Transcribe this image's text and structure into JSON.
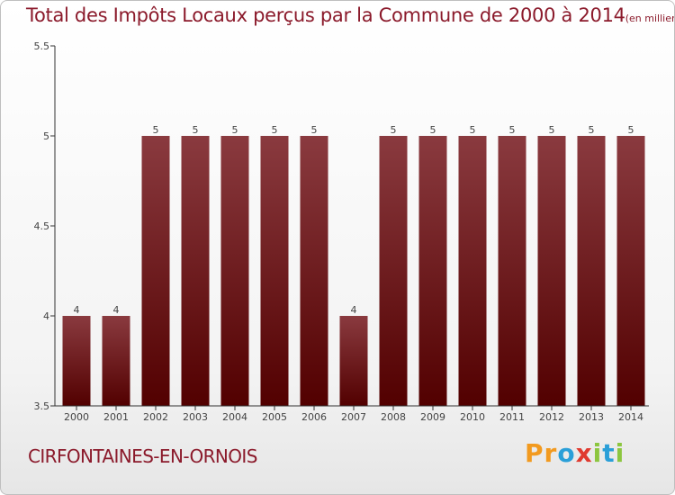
{
  "chart_data": {
    "type": "bar",
    "title": "Total des Impôts Locaux perçus par la Commune de 2000 à 2014",
    "unit": "(en milliers d'€)",
    "categories": [
      "2000",
      "2001",
      "2002",
      "2003",
      "2004",
      "2005",
      "2006",
      "2007",
      "2008",
      "2009",
      "2010",
      "2011",
      "2012",
      "2013",
      "2014"
    ],
    "values": [
      4,
      4,
      5,
      5,
      5,
      5,
      5,
      4,
      5,
      5,
      5,
      5,
      5,
      5,
      5
    ],
    "ylim": [
      3.5,
      5.5
    ],
    "yticks": [
      3.5,
      4,
      4.5,
      5,
      5.5
    ],
    "ytick_labels": [
      "3.5",
      "4",
      "4.5",
      "5",
      "5.5"
    ],
    "xlabel": "",
    "ylabel": "",
    "bar_color_top": "#8a3a3f",
    "bar_color_bottom": "#520000"
  },
  "commune_name": "CIRFONTAINES-EN-ORNOIS",
  "brand": {
    "name": "Proxiti",
    "letters": [
      "P",
      "r",
      "o",
      "x",
      "i",
      "t",
      "i"
    ],
    "colors": [
      "#f29a1f",
      "#f29a1f",
      "#2a9fd8",
      "#e03a2f",
      "#8cc63f",
      "#2a9fd8",
      "#8cc63f"
    ]
  },
  "colors": {
    "text": "#8b1a2b",
    "axis": "#333333"
  }
}
